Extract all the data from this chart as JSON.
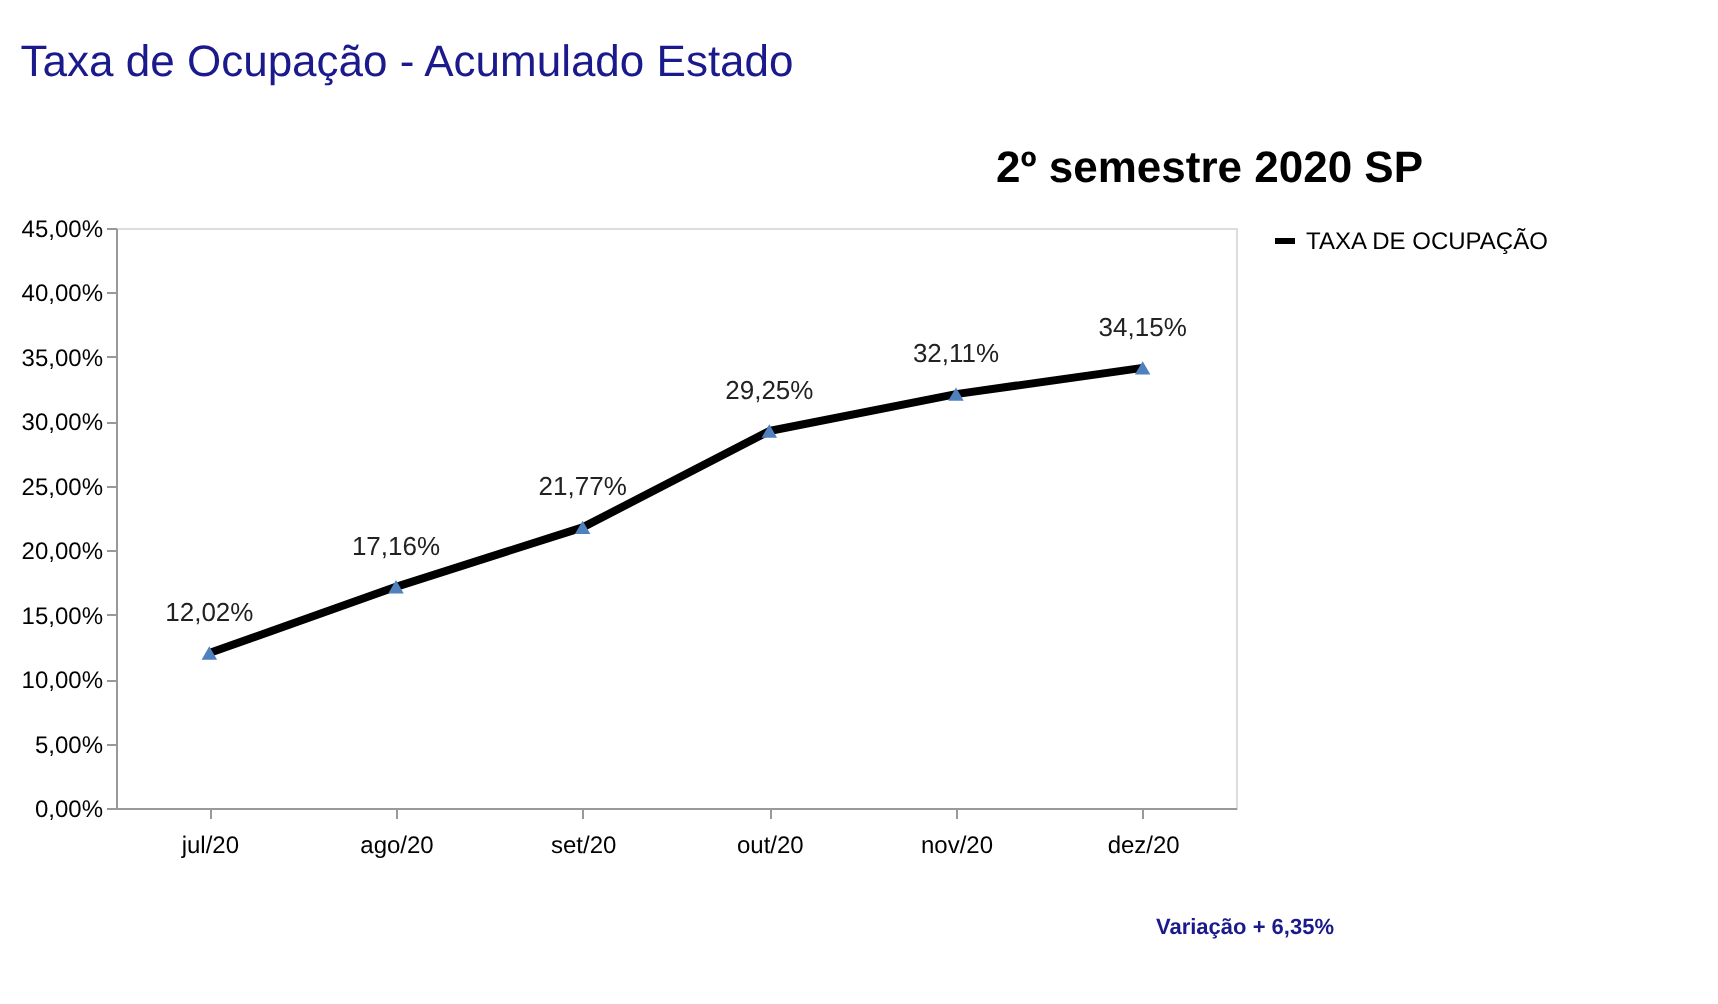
{
  "chart_data": {
    "type": "line",
    "title": "Taxa de Ocupação - Acumulado Estado",
    "annotations": [
      "2º semestre 2020 SP",
      "Variação + 6,35%"
    ],
    "categories": [
      "jul/20",
      "ago/20",
      "set/20",
      "out/20",
      "nov/20",
      "dez/20"
    ],
    "series": [
      {
        "name": "TAXA DE OCUPAÇÃO",
        "color": "#000000",
        "values": [
          12.02,
          17.16,
          21.77,
          29.25,
          32.11,
          34.15
        ],
        "value_labels": [
          "12,02%",
          "17,16%",
          "21,77%",
          "29,25%",
          "32,11%",
          "34,15%"
        ]
      }
    ],
    "ylim": [
      0,
      45
    ],
    "yticks": [
      {
        "value": 0,
        "label": "0,00%"
      },
      {
        "value": 5,
        "label": "5,00%"
      },
      {
        "value": 10,
        "label": "10,00%"
      },
      {
        "value": 15,
        "label": "15,00%"
      },
      {
        "value": 20,
        "label": "20,00%"
      },
      {
        "value": 25,
        "label": "25,00%"
      },
      {
        "value": 30,
        "label": "30,00%"
      },
      {
        "value": 35,
        "label": "35,00%"
      },
      {
        "value": 40,
        "label": "40,00%"
      },
      {
        "value": 45,
        "label": "45,00%"
      }
    ],
    "grid": false,
    "legend": "right",
    "marker": "triangle",
    "line_style": "solid"
  }
}
